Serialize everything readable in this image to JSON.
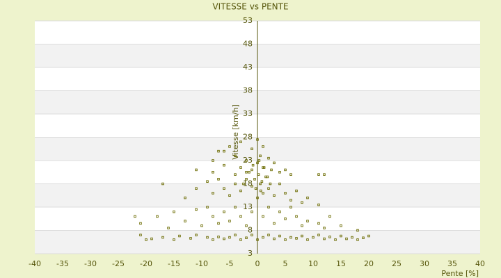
{
  "chart_data": {
    "type": "scatter",
    "title": "VITESSE vs PENTE",
    "x_label": "Pente [%]",
    "y_label": "Vitesse [km/h]",
    "color": "#6b6b00",
    "grid": true,
    "xlim": [
      -40,
      40
    ],
    "ylim": [
      3,
      53
    ],
    "xticks": [
      -40,
      -35,
      -30,
      -25,
      -20,
      -15,
      -10,
      -5,
      0,
      5,
      10,
      15,
      20,
      25,
      30,
      35,
      40
    ],
    "yticks": [
      3,
      8,
      13,
      18,
      23,
      28,
      33,
      38,
      43,
      48,
      53
    ],
    "x": [
      -21,
      -20,
      -19,
      -17,
      -15,
      -14,
      -12,
      -11,
      -9,
      -8,
      -7,
      -6,
      -5,
      -4,
      -3,
      -2,
      -1,
      0,
      1,
      2,
      3,
      4,
      5,
      6,
      7,
      8,
      9,
      10,
      11,
      12,
      13,
      14,
      15,
      16,
      17,
      18,
      19,
      20,
      -22,
      -21,
      -18,
      -16,
      -15,
      -13,
      -11,
      -10,
      -9,
      -8,
      -7,
      -6,
      -5,
      -4,
      -3,
      -2,
      -1,
      1,
      2,
      3,
      4,
      5,
      6,
      7,
      8,
      9,
      11,
      12,
      13,
      15,
      18,
      -17,
      -13,
      -11,
      -9,
      -8,
      -7,
      -6,
      -5,
      -4,
      -3,
      -2,
      -1,
      0,
      0.5,
      1,
      1.5,
      2,
      3,
      4,
      5,
      6,
      7,
      8,
      9,
      11,
      11,
      12,
      -11,
      -8,
      -7,
      -6,
      -5,
      -4,
      -3,
      -3,
      -2,
      -1,
      -1,
      0,
      0,
      0.5,
      1,
      1,
      2,
      2.5,
      3,
      4,
      5,
      -2,
      -4,
      6,
      -6,
      -8,
      -0.5,
      0.2,
      0.8,
      -1.5,
      1.2,
      -0.8,
      0.3,
      1.8,
      -2.5,
      2.3,
      -0.3,
      0.6
    ],
    "values": [
      7,
      6,
      6.2,
      6.5,
      6,
      6.8,
      6.3,
      7,
      6.5,
      6,
      6.6,
      6.2,
      6.5,
      7,
      6,
      6.4,
      7,
      6,
      6.5,
      7,
      6.2,
      6.8,
      6,
      6.5,
      6.3,
      6.8,
      6,
      6.5,
      7,
      6.2,
      6.6,
      6,
      6.8,
      6.2,
      6.5,
      6,
      6.4,
      6.8,
      11,
      9.5,
      11,
      8.5,
      12,
      10,
      12.5,
      9,
      13,
      11,
      9.5,
      12,
      10,
      13,
      11,
      9,
      12,
      11,
      13,
      9.5,
      12,
      10.5,
      13,
      11,
      9,
      10,
      9.5,
      8.5,
      11,
      9,
      8,
      18,
      15,
      17,
      18.5,
      16,
      19,
      17,
      15.5,
      18,
      16.5,
      19,
      17.5,
      15,
      18,
      16,
      19.5,
      17,
      15.5,
      18,
      16,
      14.5,
      16.5,
      14,
      15,
      13.5,
      20,
      20,
      21,
      23,
      25,
      22,
      26,
      24,
      21.5,
      27,
      23,
      25.5,
      21,
      27.5,
      22.5,
      24,
      26,
      21.5,
      23.5,
      21,
      22.5,
      20.5,
      21,
      20.5,
      20,
      20,
      25,
      20.5,
      19,
      20,
      18.5,
      20.5,
      21.5,
      22,
      23,
      19.5,
      18,
      18,
      17,
      16.5
    ]
  }
}
